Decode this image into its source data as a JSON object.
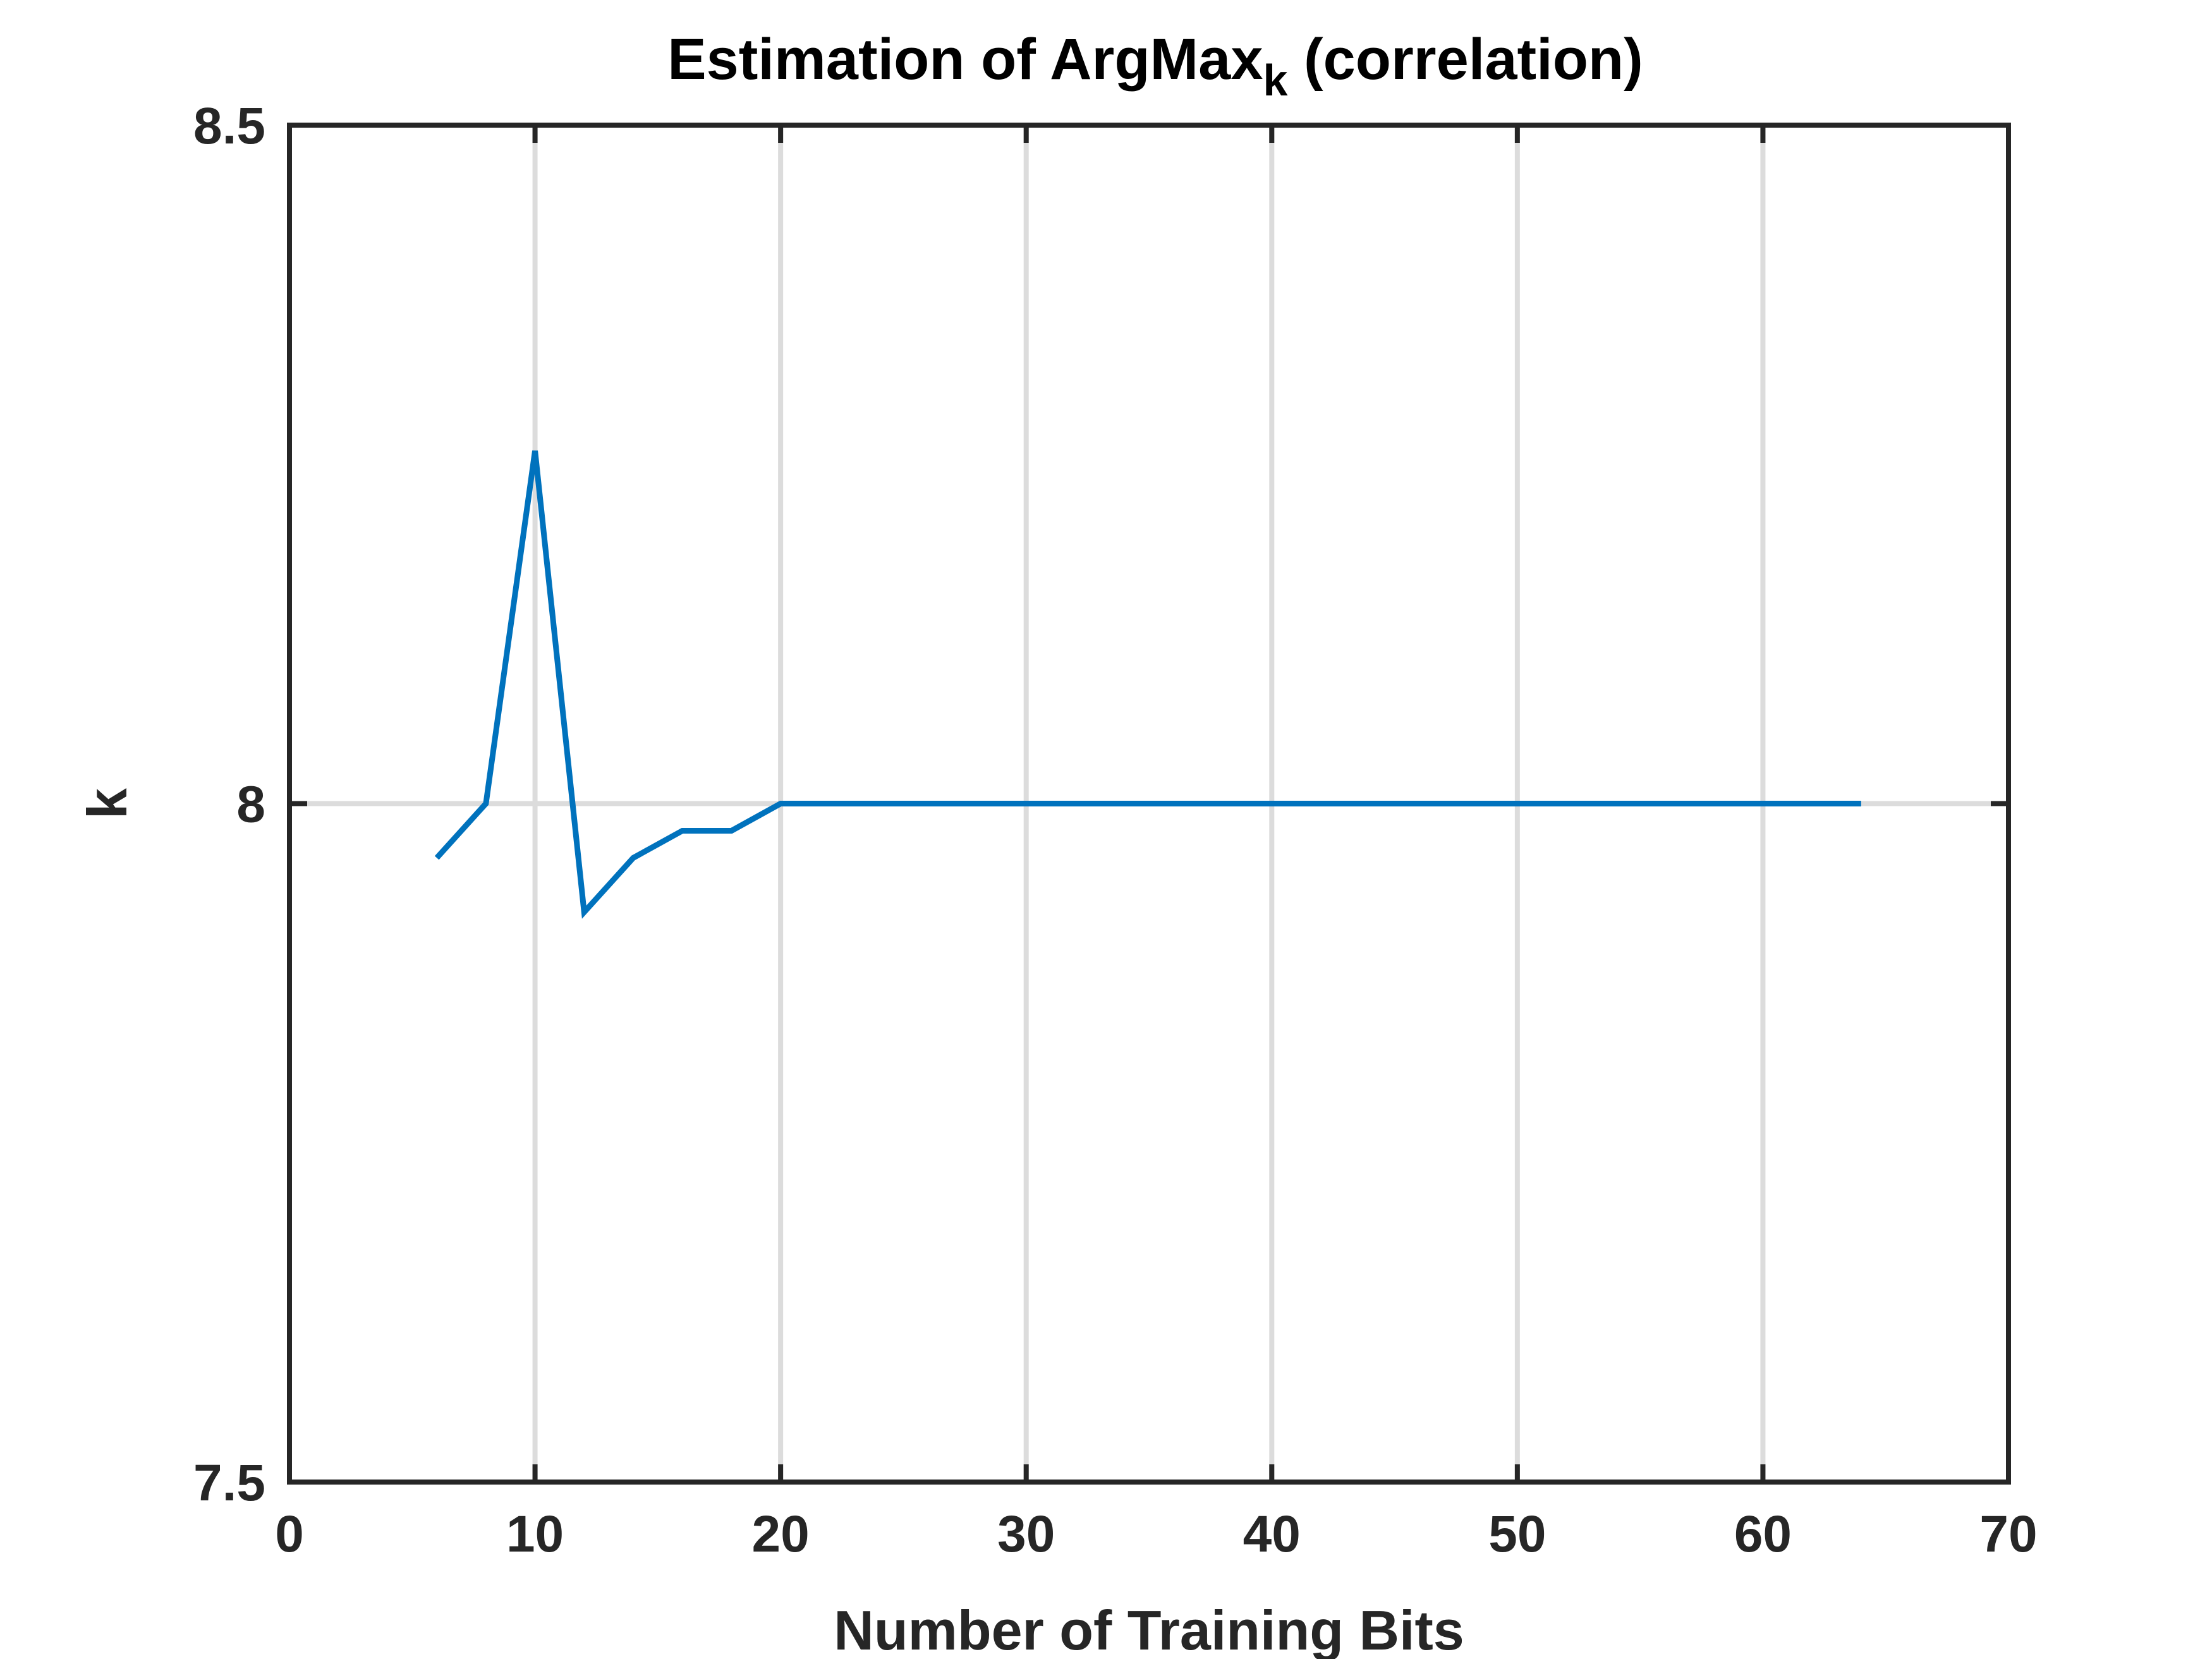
{
  "chart_data": {
    "type": "line",
    "title": "Estimation of ArgMax",
    "title_subscript": "k",
    "title_suffix": " (correlation)",
    "xlabel": "Number of Training Bits",
    "ylabel": "k",
    "xlim": [
      0,
      70
    ],
    "ylim": [
      7.5,
      8.5
    ],
    "xticks": [
      0,
      10,
      20,
      30,
      40,
      50,
      60,
      70
    ],
    "xtick_labels": [
      "0",
      "10",
      "20",
      "30",
      "40",
      "50",
      "60",
      "70"
    ],
    "yticks": [
      7.5,
      8,
      8.5
    ],
    "ytick_labels": [
      "7.5",
      "8",
      "8.5"
    ],
    "grid": true,
    "series": [
      {
        "color": "#0072bd",
        "x": [
          6,
          8,
          10,
          12,
          14,
          16,
          18,
          20,
          22,
          24,
          26,
          28,
          30,
          32,
          34,
          36,
          38,
          40,
          42,
          44,
          46,
          48,
          50,
          52,
          54,
          56,
          58,
          60,
          62,
          64
        ],
        "y": [
          7.96,
          8.0,
          8.26,
          7.92,
          7.96,
          7.98,
          7.98,
          8.0,
          8.0,
          8.0,
          8.0,
          8.0,
          8.0,
          8.0,
          8.0,
          8.0,
          8.0,
          8.0,
          8.0,
          8.0,
          8.0,
          8.0,
          8.0,
          8.0,
          8.0,
          8.0,
          8.0,
          8.0,
          8.0,
          8.0
        ]
      }
    ]
  }
}
